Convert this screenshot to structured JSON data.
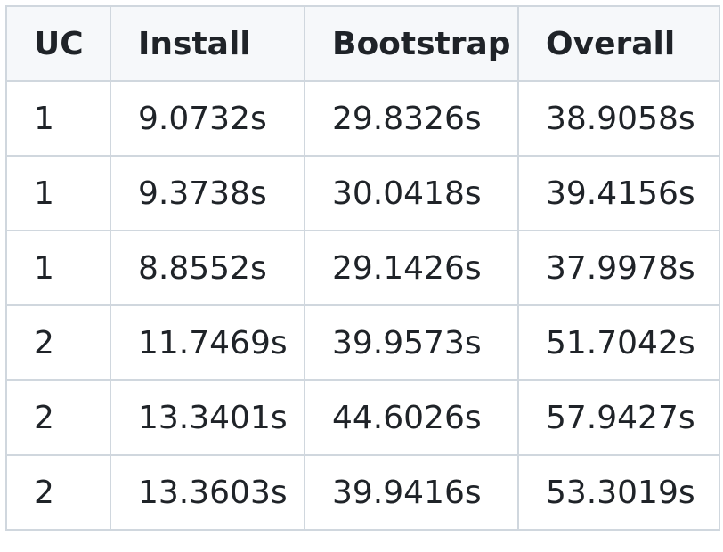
{
  "table": {
    "headers": [
      "UC",
      "Install",
      "Bootstrap",
      "Overall"
    ],
    "rows": [
      [
        "1",
        "9.0732s",
        "29.8326s",
        "38.9058s"
      ],
      [
        "1",
        "9.3738s",
        "30.0418s",
        "39.4156s"
      ],
      [
        "1",
        "8.8552s",
        "29.1426s",
        "37.9978s"
      ],
      [
        "2",
        "11.7469s",
        "39.9573s",
        "51.7042s"
      ],
      [
        "2",
        "13.3401s",
        "44.6026s",
        "57.9427s"
      ],
      [
        "2",
        "13.3603s",
        "39.9416s",
        "53.3019s"
      ]
    ]
  }
}
